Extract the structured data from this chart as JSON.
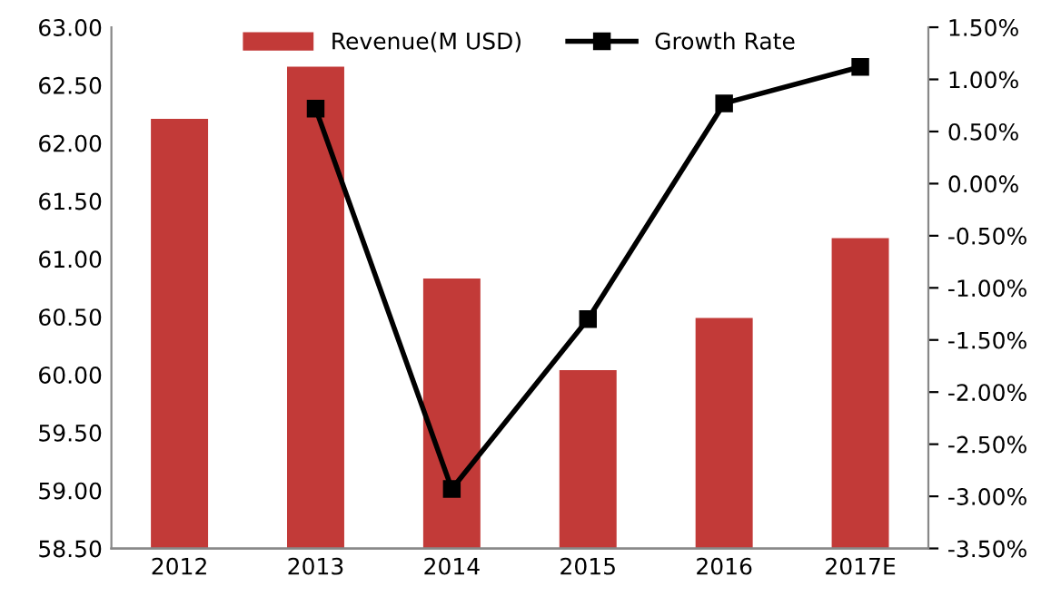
{
  "chart_data": {
    "type": "bar",
    "categories": [
      "2012",
      "2013",
      "2014",
      "2015",
      "2016",
      "2017E"
    ],
    "series": [
      {
        "name": "Revenue(M USD)",
        "color": "#c23a38",
        "values": [
          62.21,
          62.66,
          60.83,
          60.04,
          60.49,
          61.18
        ]
      },
      {
        "name": "Growth Rate",
        "type": "line",
        "axis": "y2",
        "color": "#000000",
        "marker": "square",
        "values": [
          null,
          0.72,
          -2.93,
          -1.3,
          0.77,
          1.12
        ]
      }
    ],
    "ylim": [
      58.5,
      63.0
    ],
    "yticks": [
      {
        "value": 58.5,
        "label": "58.50"
      },
      {
        "value": 59.0,
        "label": "59.00"
      },
      {
        "value": 59.5,
        "label": "59.50"
      },
      {
        "value": 60.0,
        "label": "60.00"
      },
      {
        "value": 60.5,
        "label": "60.50"
      },
      {
        "value": 61.0,
        "label": "61.00"
      },
      {
        "value": 61.5,
        "label": "61.50"
      },
      {
        "value": 62.0,
        "label": "62.00"
      },
      {
        "value": 62.5,
        "label": "62.50"
      },
      {
        "value": 63.0,
        "label": "63.00"
      }
    ],
    "y2lim": [
      -3.5,
      1.5
    ],
    "y2ticks": [
      {
        "value": -3.5,
        "label": "-3.50%"
      },
      {
        "value": -3.0,
        "label": "-3.00%"
      },
      {
        "value": -2.5,
        "label": "-2.50%"
      },
      {
        "value": -2.0,
        "label": "-2.00%"
      },
      {
        "value": -1.5,
        "label": "-1.50%"
      },
      {
        "value": -1.0,
        "label": "-1.00%"
      },
      {
        "value": -0.5,
        "label": "-0.50%"
      },
      {
        "value": 0.0,
        "label": "0.00%"
      },
      {
        "value": 0.5,
        "label": "0.50%"
      },
      {
        "value": 1.0,
        "label": "1.00%"
      },
      {
        "value": 1.5,
        "label": "1.50%"
      }
    ],
    "grid": false,
    "legend": "top"
  }
}
